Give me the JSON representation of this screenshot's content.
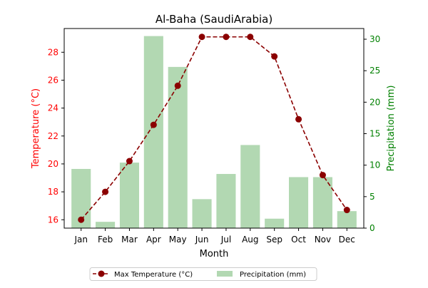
{
  "chart_data": {
    "type": "bar+line",
    "title": "Al-Baha (SaudiArabia)",
    "xlabel": "Month",
    "categories": [
      "Jan",
      "Feb",
      "Mar",
      "Apr",
      "May",
      "Jun",
      "Jul",
      "Aug",
      "Sep",
      "Oct",
      "Nov",
      "Dec"
    ],
    "left_axis": {
      "label": "Temperature (°C)",
      "color": "#ff0000",
      "ylim": [
        15.4,
        29.7
      ],
      "ticks": [
        "16",
        "18",
        "20",
        "22",
        "24",
        "26",
        "28"
      ]
    },
    "right_axis": {
      "label": "Precipitation (mm)",
      "color": "#008000",
      "ylim": [
        0,
        31.7
      ],
      "ticks": [
        "0",
        "5",
        "10",
        "15",
        "20",
        "25",
        "30"
      ]
    },
    "series": [
      {
        "name": "Max Temperature (°C)",
        "type": "line",
        "axis": "left",
        "color": "#8b0000",
        "line_style": "dashed",
        "marker": "circle",
        "values": [
          16.0,
          18.0,
          20.2,
          22.8,
          25.6,
          29.1,
          29.1,
          29.1,
          27.7,
          23.2,
          19.2,
          16.7
        ]
      },
      {
        "name": "Precipitation (mm)",
        "type": "bar",
        "axis": "right",
        "color": "#b2d8b2",
        "values": [
          9.4,
          1.0,
          10.4,
          30.5,
          25.6,
          4.6,
          8.6,
          13.2,
          1.5,
          8.1,
          8.1,
          2.7
        ]
      }
    ],
    "legend": {
      "placement": "bottom-center",
      "entries": [
        "Max Temperature (°C)",
        "Precipitation (mm)"
      ]
    },
    "grid": false
  }
}
